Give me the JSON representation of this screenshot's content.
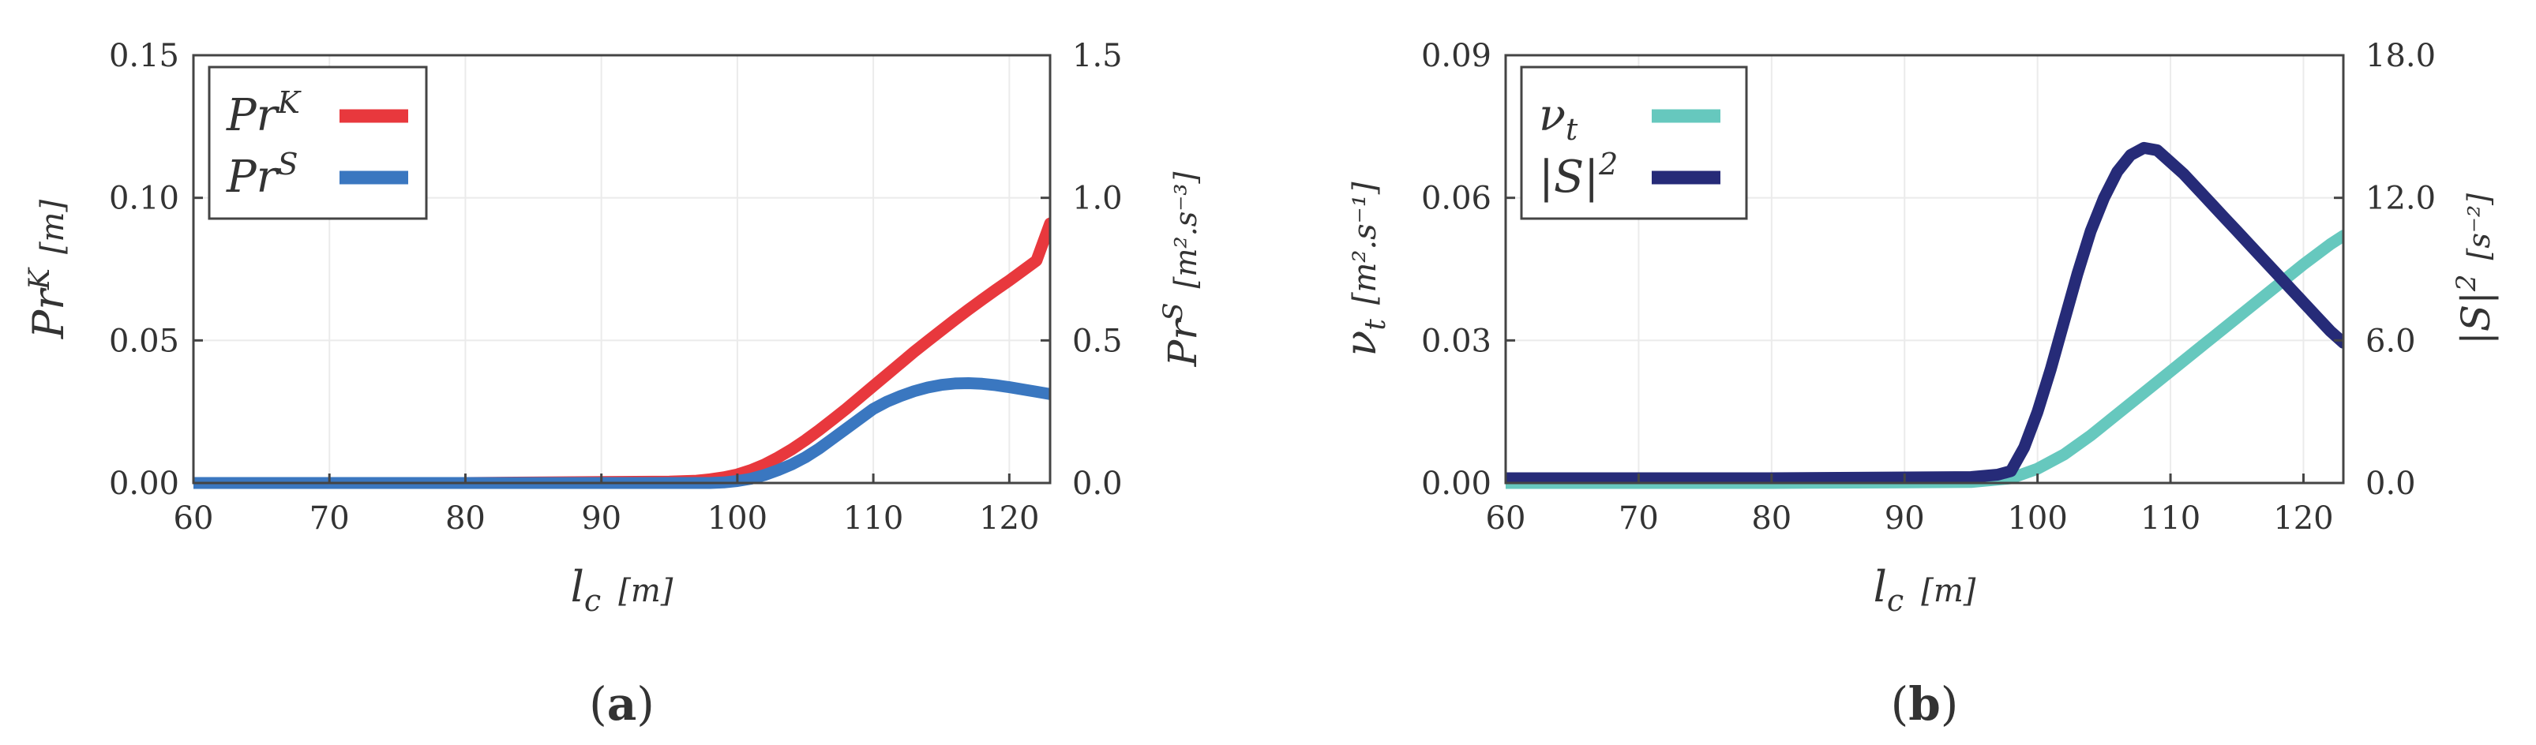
{
  "chart_data": [
    {
      "type": "line",
      "caption": "a",
      "xlabel": "l",
      "xlabel_sub": "c",
      "xlabel_unit": "[m]",
      "xlim": [
        60,
        123
      ],
      "xticks": [
        "60",
        "70",
        "80",
        "90",
        "100",
        "110",
        "120"
      ],
      "ylabel_left": "Pr",
      "ylabel_left_sup": "K",
      "ylabel_left_unit": "[m]",
      "ylim_left": [
        0,
        0.15
      ],
      "yticks_left": [
        "0.00",
        "0.05",
        "0.10",
        "0.15"
      ],
      "ylabel_right": "Pr",
      "ylabel_right_sup": "S",
      "ylabel_right_unit": "[m².s⁻³]",
      "ylim_right": [
        0,
        1.5
      ],
      "yticks_right": [
        "0.0",
        "0.5",
        "1.0",
        "1.5"
      ],
      "grid": true,
      "legend": "top-left",
      "series": [
        {
          "name": "Pr",
          "name_sup": "K",
          "axis": "left",
          "color": "#e8383d",
          "x": [
            60,
            80,
            95,
            97,
            98,
            99,
            100,
            101,
            102,
            103,
            104,
            105,
            106,
            107,
            108,
            109,
            110,
            111,
            112,
            113,
            114,
            115,
            116,
            117,
            118,
            119,
            120,
            121,
            122,
            123
          ],
          "y": [
            0,
            0,
            0.0005,
            0.0008,
            0.0013,
            0.002,
            0.003,
            0.0045,
            0.0065,
            0.009,
            0.0118,
            0.015,
            0.0185,
            0.0222,
            0.026,
            0.03,
            0.034,
            0.038,
            0.042,
            0.046,
            0.0498,
            0.0535,
            0.0572,
            0.0608,
            0.0643,
            0.0677,
            0.071,
            0.0745,
            0.078,
            0.091
          ]
        },
        {
          "name": "Pr",
          "name_sup": "S",
          "axis": "right",
          "color": "#3a77c0",
          "x": [
            60,
            80,
            98,
            99,
            100,
            101,
            102,
            103,
            104,
            105,
            106,
            107,
            108,
            109,
            110,
            111,
            112,
            113,
            114,
            115,
            116,
            117,
            118,
            119,
            120,
            121,
            122,
            123
          ],
          "y": [
            0,
            0,
            0,
            0.002,
            0.007,
            0.015,
            0.028,
            0.045,
            0.065,
            0.09,
            0.12,
            0.155,
            0.19,
            0.225,
            0.26,
            0.285,
            0.305,
            0.322,
            0.335,
            0.344,
            0.349,
            0.35,
            0.348,
            0.343,
            0.336,
            0.328,
            0.32,
            0.312
          ]
        }
      ]
    },
    {
      "type": "line",
      "caption": "b",
      "xlabel": "l",
      "xlabel_sub": "c",
      "xlabel_unit": "[m]",
      "xlim": [
        60,
        123
      ],
      "xticks": [
        "60",
        "70",
        "80",
        "90",
        "100",
        "110",
        "120"
      ],
      "ylabel_left": "ν",
      "ylabel_left_sub": "t",
      "ylabel_left_unit": "[m².s⁻¹]",
      "ylim_left": [
        0,
        0.09
      ],
      "yticks_left": [
        "0.00",
        "0.03",
        "0.06",
        "0.09"
      ],
      "ylabel_right": "|S|",
      "ylabel_right_sup": "2",
      "ylabel_right_unit": "[s⁻²]",
      "ylim_right": [
        0,
        18.0
      ],
      "yticks_right": [
        "0.0",
        "6.0",
        "12.0",
        "18.0"
      ],
      "grid": true,
      "legend": "top-left",
      "series": [
        {
          "name": "ν",
          "name_sub": "t",
          "axis": "left",
          "color": "#66c8be",
          "x": [
            60,
            80,
            95,
            98,
            100,
            102,
            104,
            106,
            108,
            110,
            112,
            114,
            116,
            118,
            120,
            122,
            123
          ],
          "y": [
            0,
            0,
            0.0002,
            0.001,
            0.003,
            0.006,
            0.01,
            0.0145,
            0.019,
            0.0235,
            0.028,
            0.0325,
            0.037,
            0.0415,
            0.046,
            0.0502,
            0.052
          ]
        },
        {
          "name": "|S|",
          "name_sup": "2",
          "axis": "right",
          "color": "#262b78",
          "x": [
            60,
            80,
            95,
            97,
            98,
            99,
            100,
            101,
            102,
            103,
            104,
            105,
            106,
            107,
            108,
            109,
            110,
            111,
            112,
            113,
            114,
            115,
            116,
            117,
            118,
            119,
            120,
            121,
            122,
            123
          ],
          "y": [
            0.2,
            0.2,
            0.25,
            0.35,
            0.5,
            1.5,
            3.0,
            4.8,
            6.8,
            8.8,
            10.6,
            12.0,
            13.1,
            13.8,
            14.1,
            14.0,
            13.5,
            13.0,
            12.4,
            11.8,
            11.2,
            10.6,
            10.0,
            9.4,
            8.8,
            8.2,
            7.6,
            7.0,
            6.4,
            5.9
          ]
        }
      ]
    }
  ]
}
